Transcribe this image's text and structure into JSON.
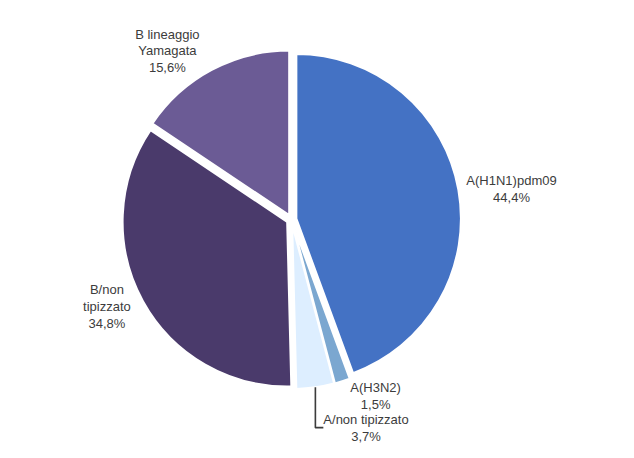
{
  "chart_data": {
    "type": "pie",
    "categories": [
      "A(H1N1)pdm09",
      "A(H3N2)",
      "A/non tipizzato",
      "B/non\ntipizzato",
      "B lineaggio\nYamagata"
    ],
    "values": [
      44.4,
      1.5,
      3.7,
      34.8,
      15.6
    ],
    "value_labels": [
      "44,4%",
      "1,5%",
      "3,7%",
      "34,8%",
      "15,6%"
    ],
    "colors": [
      "#4472C4",
      "#7BA7D0",
      "#DDEEFF",
      "#4A3A6B",
      "#6B5B95"
    ],
    "data_labels": true
  }
}
